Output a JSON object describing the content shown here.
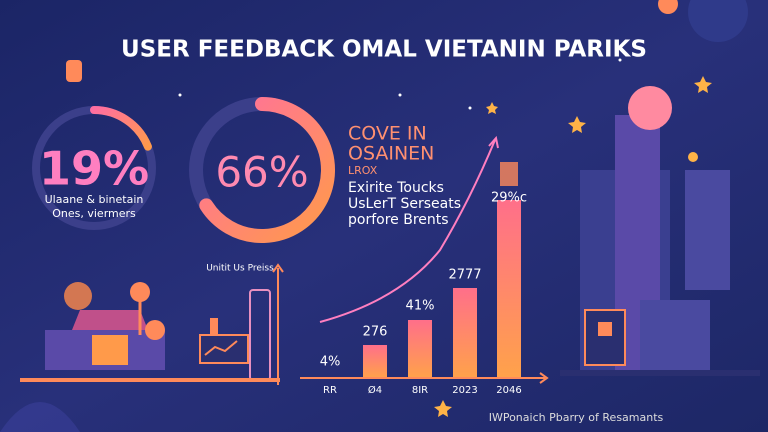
{
  "title": "USER FEEDBACK OMAL VIETANIN PARIKS",
  "donuts": [
    {
      "value": 19,
      "value_label": "19%",
      "caption": [
        "Ulaane & binetain",
        "Ones, viermers"
      ]
    },
    {
      "value": 66,
      "value_label": "66%"
    }
  ],
  "panel": {
    "heading": [
      "COVE IN",
      "OSAINEN"
    ],
    "subheading": "LROX",
    "body": [
      "Exirite Toucks",
      "UsLerT Serseats",
      "porfore Brents"
    ]
  },
  "bar_chart": {
    "label": "Unitit Us Preiss",
    "categories": [
      "RR",
      "Ø4",
      "8IR",
      "2023",
      "2046"
    ],
    "value_labels": [
      "4%",
      "276",
      "41%",
      "2777",
      "29%c"
    ]
  },
  "footer": "IWPonaich Pbarry of Resamants"
}
